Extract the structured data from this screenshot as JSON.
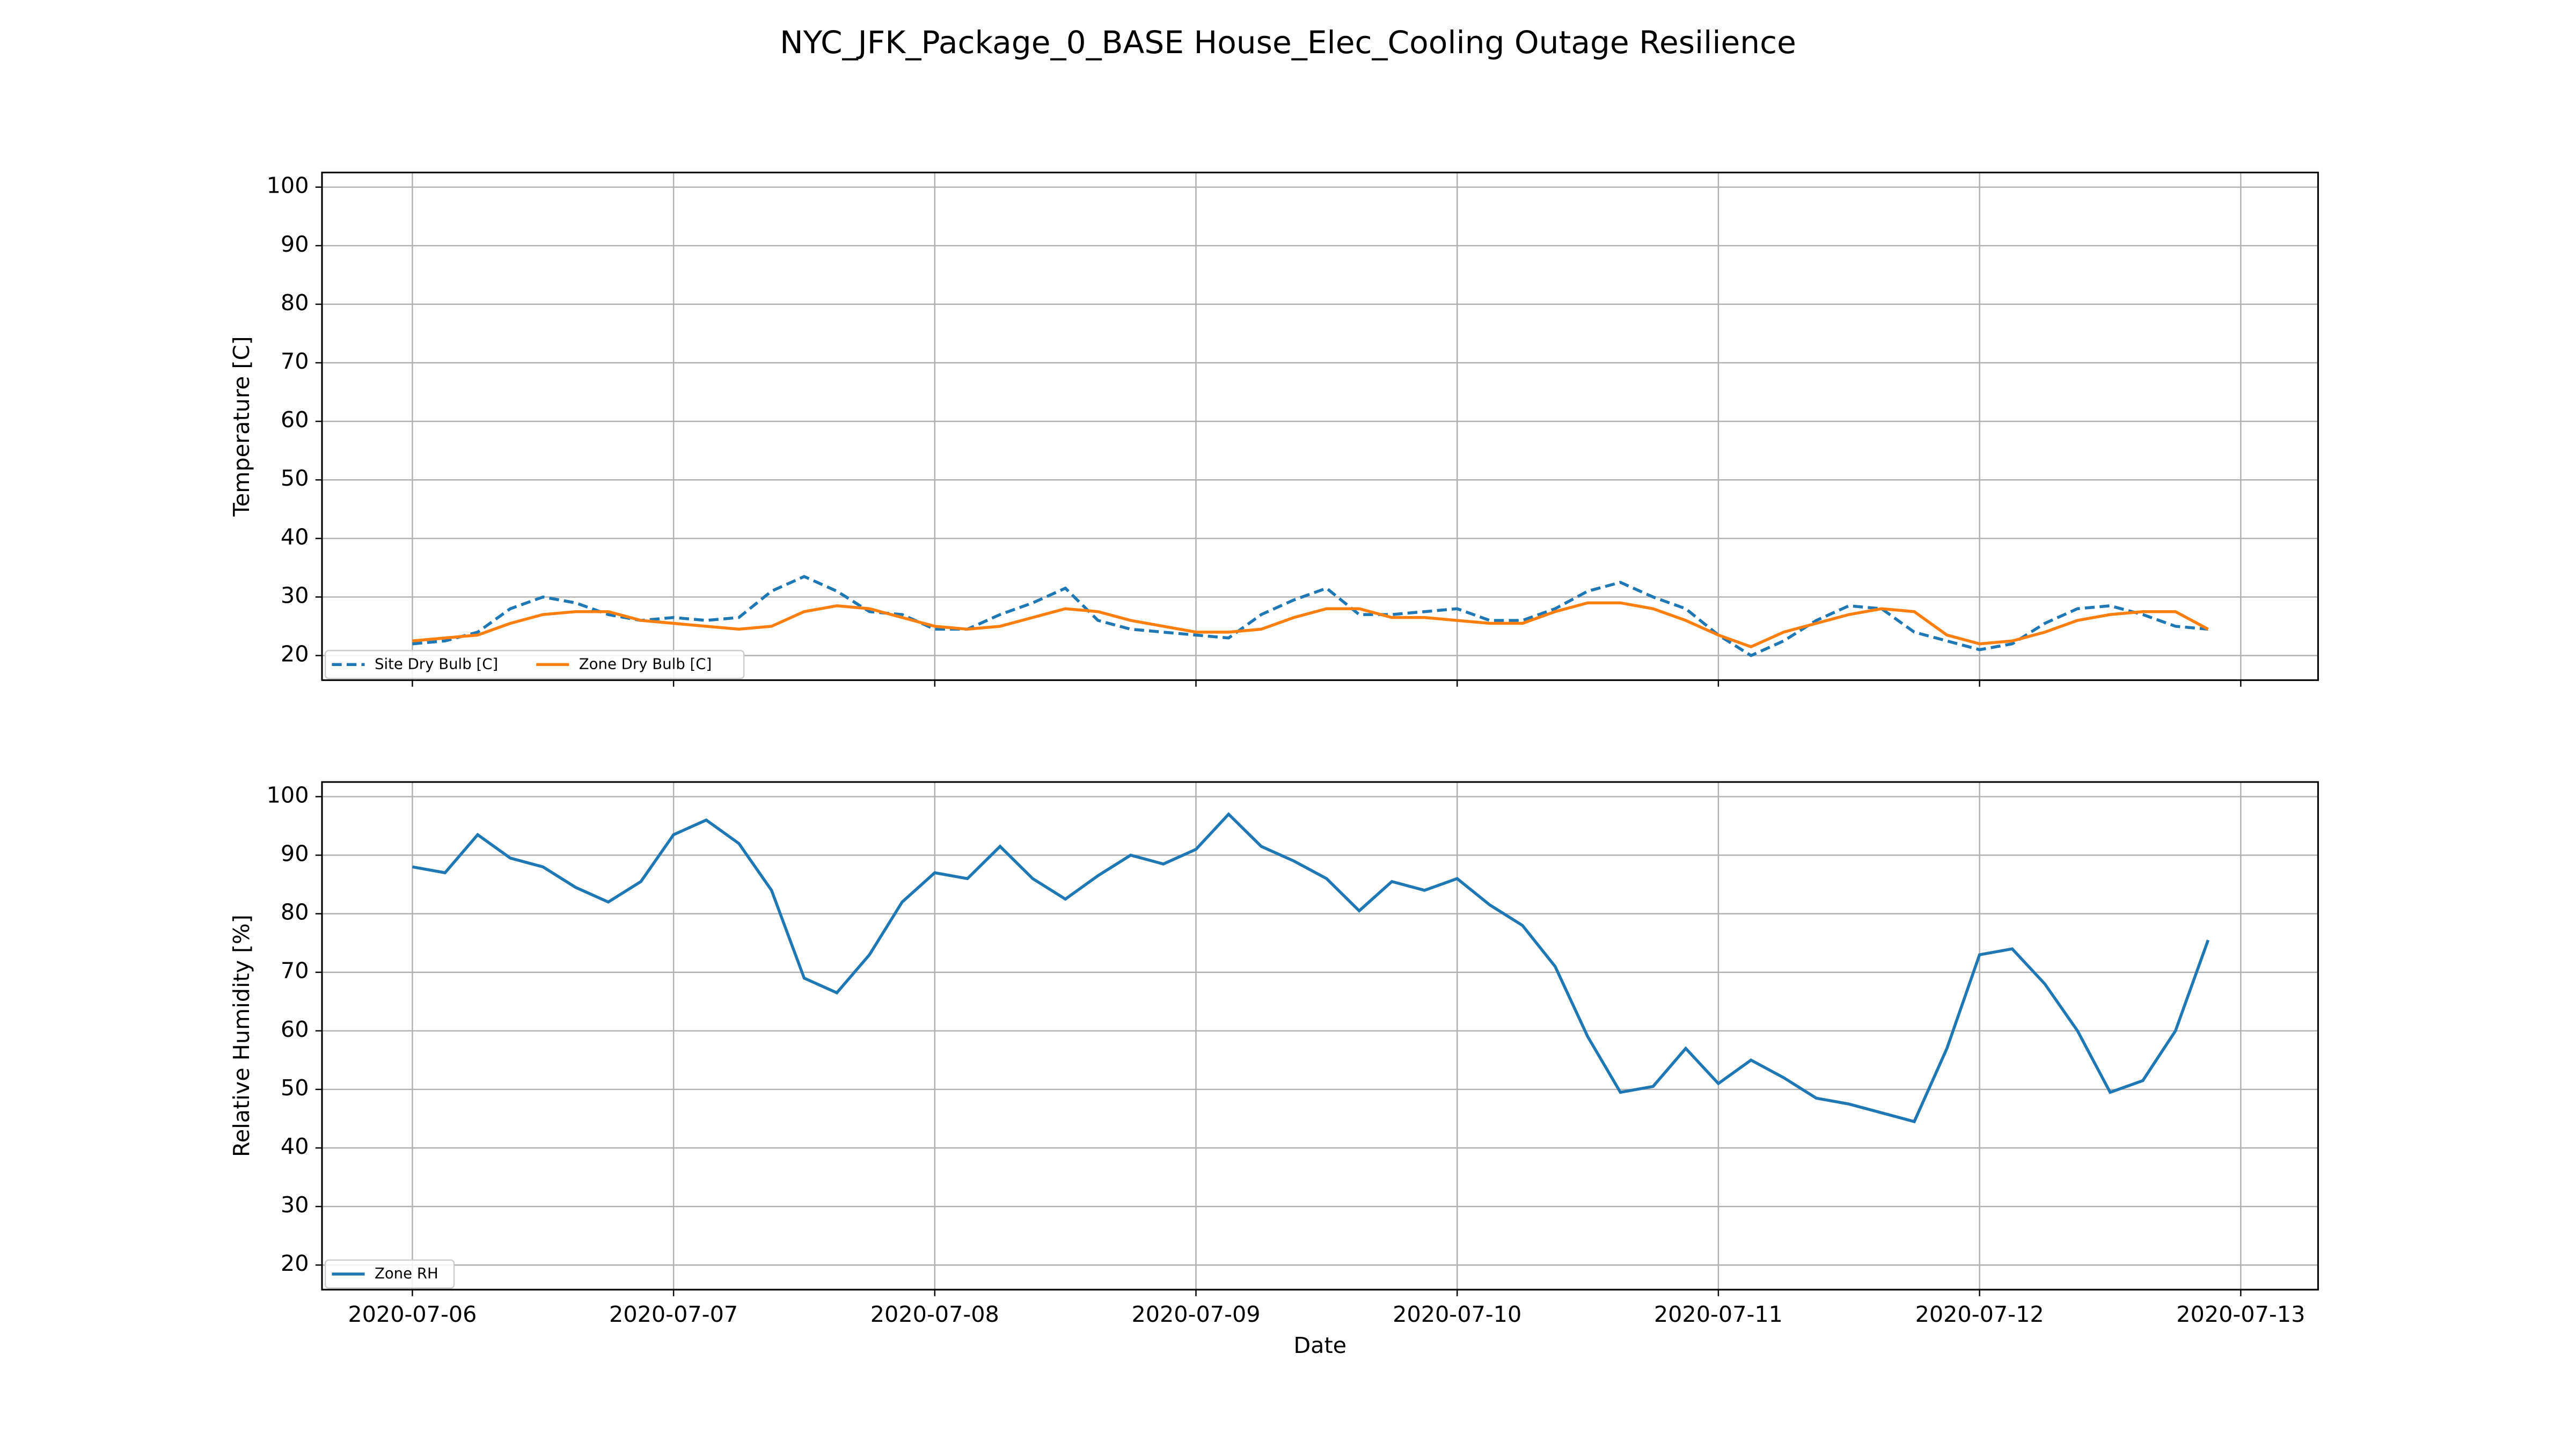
{
  "title": "NYC_JFK_Package_0_BASE House_Elec_Cooling Outage Resilience",
  "chart_data": [
    {
      "type": "line",
      "ylabel": "Temperature [C]",
      "grid": true,
      "legend": "lower left",
      "xlim": [
        -0.346,
        7.296
      ],
      "ylim": [
        15.8,
        102.5
      ],
      "xticks": [
        0,
        1,
        2,
        3,
        4,
        5,
        6,
        7
      ],
      "yticks": [
        20,
        30,
        40,
        50,
        60,
        70,
        80,
        90,
        100
      ],
      "x": [
        0,
        0.125,
        0.25,
        0.375,
        0.5,
        0.625,
        0.75,
        0.875,
        1,
        1.125,
        1.25,
        1.375,
        1.5,
        1.625,
        1.75,
        1.875,
        2,
        2.125,
        2.25,
        2.375,
        2.5,
        2.625,
        2.75,
        2.875,
        3,
        3.125,
        3.25,
        3.375,
        3.5,
        3.625,
        3.75,
        3.875,
        4,
        4.125,
        4.25,
        4.375,
        4.5,
        4.625,
        4.75,
        4.875,
        5,
        5.125,
        5.25,
        5.375,
        5.5,
        5.625,
        5.75,
        5.875,
        6,
        6.125,
        6.25,
        6.375,
        6.5,
        6.625,
        6.75,
        6.875
      ],
      "series": [
        {
          "name": "Site Dry Bulb [C]",
          "color": "#1f77b4",
          "linestyle": "dashed",
          "values": [
            22,
            22.5,
            24,
            28,
            30,
            29,
            27,
            26,
            26.5,
            26,
            26.5,
            31,
            33.5,
            31,
            27.5,
            27,
            24.5,
            24.5,
            27,
            29,
            31.5,
            26,
            24.5,
            24,
            23.5,
            23,
            27,
            29.5,
            31.5,
            27,
            27,
            27.5,
            28,
            26,
            26,
            28,
            31,
            32.5,
            30,
            28,
            23.5,
            20,
            22.5,
            26,
            28.5,
            28,
            24,
            22.5,
            21,
            22,
            25.5,
            28,
            28.5,
            27,
            25,
            24.5
          ]
        },
        {
          "name": "Zone Dry Bulb [C]",
          "color": "#ff7f0e",
          "linestyle": "solid",
          "values": [
            22.5,
            23,
            23.5,
            25.5,
            27,
            27.5,
            27.5,
            26,
            25.5,
            25,
            24.5,
            25,
            27.5,
            28.5,
            28,
            26.5,
            25,
            24.5,
            25,
            26.5,
            28,
            27.5,
            26,
            25,
            24,
            24,
            24.5,
            26.5,
            28,
            28,
            26.5,
            26.5,
            26,
            25.5,
            25.5,
            27.5,
            29,
            29,
            28,
            26,
            23.5,
            21.5,
            24,
            25.5,
            27,
            28,
            27.5,
            23.5,
            22,
            22.5,
            24,
            26,
            27,
            27.5,
            27.5,
            24.5
          ]
        }
      ]
    },
    {
      "type": "line",
      "ylabel": "Relative Humidity [%]",
      "xlabel": "Date",
      "grid": true,
      "legend": "lower left",
      "xlim": [
        -0.346,
        7.296
      ],
      "ylim": [
        15.8,
        102.5
      ],
      "xticks": [
        {
          "value": 0,
          "label": "2020-07-06"
        },
        {
          "value": 1,
          "label": "2020-07-07"
        },
        {
          "value": 2,
          "label": "2020-07-08"
        },
        {
          "value": 3,
          "label": "2020-07-09"
        },
        {
          "value": 4,
          "label": "2020-07-10"
        },
        {
          "value": 5,
          "label": "2020-07-11"
        },
        {
          "value": 6,
          "label": "2020-07-12"
        },
        {
          "value": 7,
          "label": "2020-07-13"
        }
      ],
      "yticks": [
        20,
        30,
        40,
        50,
        60,
        70,
        80,
        90,
        100
      ],
      "x": [
        0,
        0.125,
        0.25,
        0.375,
        0.5,
        0.625,
        0.75,
        0.875,
        1,
        1.125,
        1.25,
        1.375,
        1.5,
        1.625,
        1.75,
        1.875,
        2,
        2.125,
        2.25,
        2.375,
        2.5,
        2.625,
        2.75,
        2.875,
        3,
        3.125,
        3.25,
        3.375,
        3.5,
        3.625,
        3.75,
        3.875,
        4,
        4.125,
        4.25,
        4.375,
        4.5,
        4.625,
        4.75,
        4.875,
        5,
        5.125,
        5.25,
        5.375,
        5.5,
        5.625,
        5.75,
        5.875,
        6,
        6.125,
        6.25,
        6.375,
        6.5,
        6.625,
        6.75,
        6.875
      ],
      "series": [
        {
          "name": "Zone RH",
          "color": "#1f77b4",
          "linestyle": "solid",
          "values": [
            88,
            87,
            93.5,
            89.5,
            88,
            84.5,
            82,
            85.5,
            93.5,
            96,
            92,
            84,
            69,
            66.5,
            73,
            82,
            87,
            86,
            91.5,
            86,
            82.5,
            86.5,
            90,
            88.5,
            91,
            97,
            91.5,
            89,
            86,
            80.5,
            85.5,
            84,
            86,
            81.5,
            78,
            71,
            59,
            49.5,
            50.5,
            57,
            51,
            55,
            52,
            48.5,
            47.5,
            46,
            44.5,
            57,
            73,
            74,
            68,
            60,
            49.5,
            51.5,
            60,
            75.5
          ]
        }
      ]
    }
  ]
}
